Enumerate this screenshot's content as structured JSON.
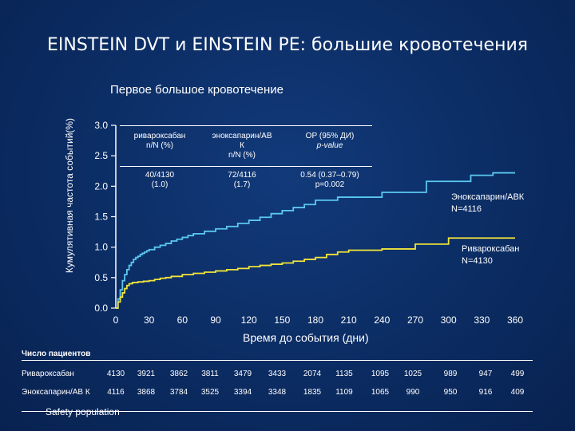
{
  "title": "EINSTEIN DVT и EINSTEIN PE: большие кровотечения",
  "chart_data": {
    "type": "line",
    "title": "Первое большое кровотечение",
    "xlabel": "Время до события (дни)",
    "ylabel": "Кумулятивная частота событий(%)",
    "xlim": [
      0,
      360
    ],
    "ylim": [
      0,
      3.0
    ],
    "xticks": [
      0,
      30,
      60,
      90,
      120,
      150,
      180,
      210,
      240,
      270,
      300,
      330,
      360
    ],
    "xtick_labels": [
      "0",
      "30",
      "60",
      "90",
      "120",
      "150",
      "180",
      "210",
      "240",
      "270",
      "300",
      "330",
      "360"
    ],
    "yticks": [
      0,
      0.5,
      1.0,
      1.5,
      2.0,
      2.5,
      3.0
    ],
    "ytick_labels": [
      "0.0",
      "0.5",
      "1.0",
      "1.5",
      "2.0",
      "2.5",
      "3.0"
    ],
    "series": [
      {
        "name": "Эноксапарин/АВК N=4116",
        "color": "#5bc8f0",
        "x": [
          0,
          2,
          4,
          6,
          8,
          10,
          12,
          14,
          16,
          18,
          20,
          22,
          24,
          26,
          28,
          30,
          35,
          40,
          45,
          50,
          55,
          60,
          65,
          70,
          80,
          90,
          100,
          110,
          120,
          130,
          140,
          150,
          160,
          170,
          180,
          200,
          240,
          280,
          320,
          340,
          360
        ],
        "y": [
          0,
          0.15,
          0.3,
          0.45,
          0.55,
          0.63,
          0.7,
          0.75,
          0.8,
          0.83,
          0.85,
          0.88,
          0.9,
          0.92,
          0.94,
          0.96,
          1.0,
          1.03,
          1.06,
          1.1,
          1.13,
          1.16,
          1.19,
          1.22,
          1.26,
          1.3,
          1.34,
          1.39,
          1.44,
          1.49,
          1.55,
          1.6,
          1.65,
          1.7,
          1.77,
          1.82,
          1.9,
          2.08,
          2.18,
          2.22,
          2.22
        ]
      },
      {
        "name": "Ривароксабан N=4130",
        "color": "#f2e43a",
        "x": [
          0,
          2,
          4,
          6,
          8,
          10,
          12,
          15,
          20,
          25,
          30,
          35,
          40,
          45,
          50,
          60,
          70,
          80,
          90,
          100,
          110,
          120,
          130,
          140,
          150,
          160,
          170,
          180,
          190,
          200,
          210,
          240,
          270,
          300,
          360
        ],
        "y": [
          0,
          0.1,
          0.18,
          0.25,
          0.32,
          0.37,
          0.4,
          0.42,
          0.43,
          0.44,
          0.45,
          0.47,
          0.49,
          0.5,
          0.52,
          0.55,
          0.57,
          0.59,
          0.61,
          0.63,
          0.65,
          0.68,
          0.7,
          0.72,
          0.74,
          0.77,
          0.8,
          0.83,
          0.88,
          0.92,
          0.95,
          0.97,
          1.05,
          1.15,
          1.15
        ]
      }
    ]
  },
  "table": {
    "headers": [
      [
        "ривароксабан",
        "n/N (%)"
      ],
      [
        "эноксапарин/АВ",
        "К",
        "n/N (%)"
      ],
      [
        "ОР (95% ДИ)",
        "p-value"
      ]
    ],
    "values": [
      [
        "40/4130",
        "(1.0)"
      ],
      [
        "72/4116",
        "(1.7)"
      ],
      [
        "0.54 (0.37–0.79)",
        "p=0.002"
      ]
    ]
  },
  "annotations": {
    "enox": [
      "Эноксапарин/АВК",
      "N=4116"
    ],
    "riva": [
      "Ривароксабан",
      "N=4130"
    ]
  },
  "number_at_risk": {
    "title": "Число пациентов",
    "rows": [
      {
        "label": "Ривароксабан",
        "values": [
          "4130",
          "3921",
          "3862",
          "3811",
          "3479",
          "3433",
          "2074",
          "1135",
          "1095",
          "1025",
          "989",
          "947",
          "499"
        ]
      },
      {
        "label": "Эноксапарин/АВ К",
        "values": [
          "4116",
          "3868",
          "3784",
          "3525",
          "3394",
          "3348",
          "1835",
          "1109",
          "1065",
          "990",
          "950",
          "916",
          "409"
        ]
      }
    ]
  },
  "footnote": "Safety population"
}
